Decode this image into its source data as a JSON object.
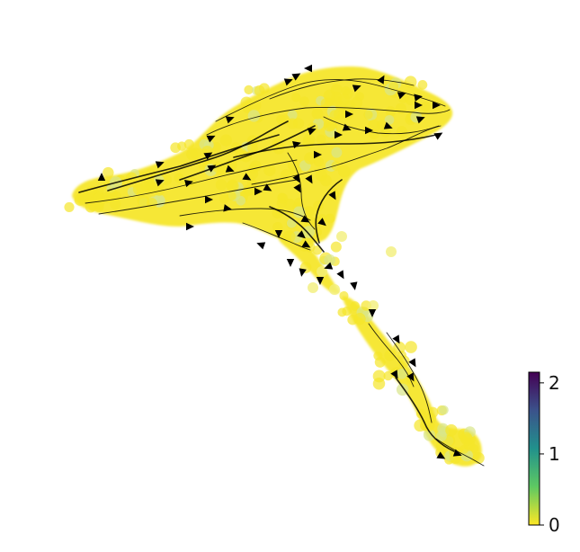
{
  "chart_data": {
    "type": "scatter",
    "title": "",
    "xlabel": "",
    "ylabel": "",
    "axes_visible": false,
    "overlay": "velocity-streamlines",
    "point_color": "#f5e62a",
    "streamline_color": "#000000",
    "colorbar": {
      "colormap": "viridis_r",
      "range": [
        0,
        2.15
      ],
      "ticks": [
        {
          "value": 2,
          "label": "2"
        },
        {
          "value": 1,
          "label": "1"
        },
        {
          "value": 0,
          "label": "0"
        }
      ],
      "stops": [
        "#fde725",
        "#5ec962",
        "#21918c",
        "#3b528b",
        "#440154"
      ]
    },
    "value_range_shown": [
      0,
      0.3
    ]
  }
}
